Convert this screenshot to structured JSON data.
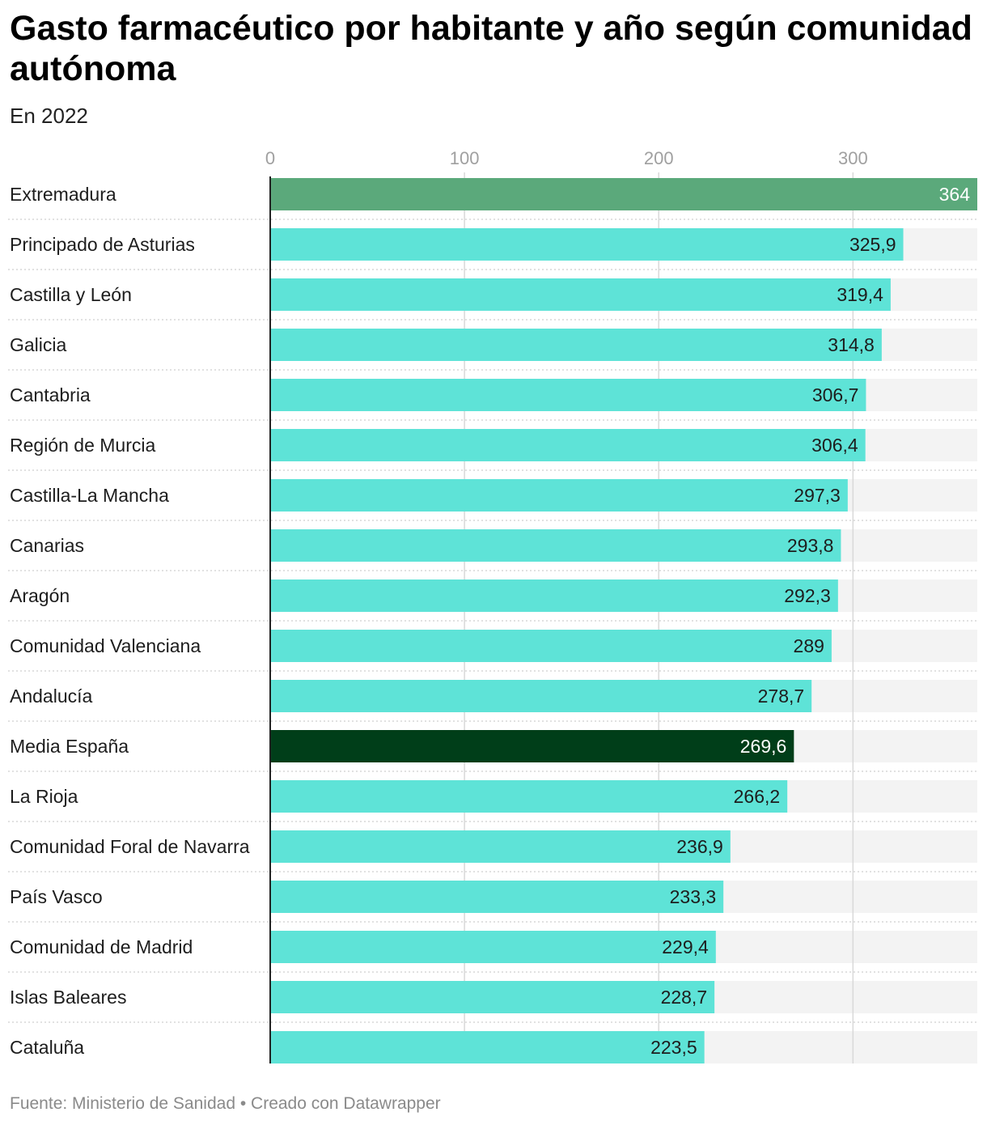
{
  "title": "Gasto farmacéutico por habitante y año según comunidad autónoma",
  "subtitle": "En 2022",
  "footer": {
    "source": "Fuente: Ministerio de Sanidad",
    "separator": " • ",
    "credit": "Creado con Datawrapper"
  },
  "colors": {
    "default_bar": "#5ee3d7",
    "highlight_top": "#5ba97b",
    "highlight_average": "#003e19",
    "track": "#f3f3f3",
    "gridline": "#d9d9d9",
    "tick_label": "#a0a0a0"
  },
  "chart_data": {
    "type": "bar",
    "orientation": "horizontal",
    "xlim": [
      0,
      364
    ],
    "ticks": [
      0,
      100,
      200,
      300
    ],
    "tick_labels": [
      "0",
      "100",
      "200",
      "300"
    ],
    "grid": true,
    "categories": [
      "Extremadura",
      "Principado de Asturias",
      "Castilla y León",
      "Galicia",
      "Cantabria",
      "Región de Murcia",
      "Castilla-La Mancha",
      "Canarias",
      "Aragón",
      "Comunidad Valenciana",
      "Andalucía",
      "Media España",
      "La Rioja",
      "Comunidad Foral de Navarra",
      "País Vasco",
      "Comunidad de Madrid",
      "Islas Baleares",
      "Cataluña"
    ],
    "values": [
      364,
      325.9,
      319.4,
      314.8,
      306.7,
      306.4,
      297.3,
      293.8,
      292.3,
      289,
      278.7,
      269.6,
      266.2,
      236.9,
      233.3,
      229.4,
      228.7,
      223.5
    ],
    "value_labels": [
      "364",
      "325,9",
      "319,4",
      "314,8",
      "306,7",
      "306,4",
      "297,3",
      "293,8",
      "292,3",
      "289",
      "278,7",
      "269,6",
      "266,2",
      "236,9",
      "233,3",
      "229,4",
      "228,7",
      "223,5"
    ],
    "highlights": {
      "Extremadura": "highlight_top",
      "Media España": "highlight_average"
    }
  }
}
